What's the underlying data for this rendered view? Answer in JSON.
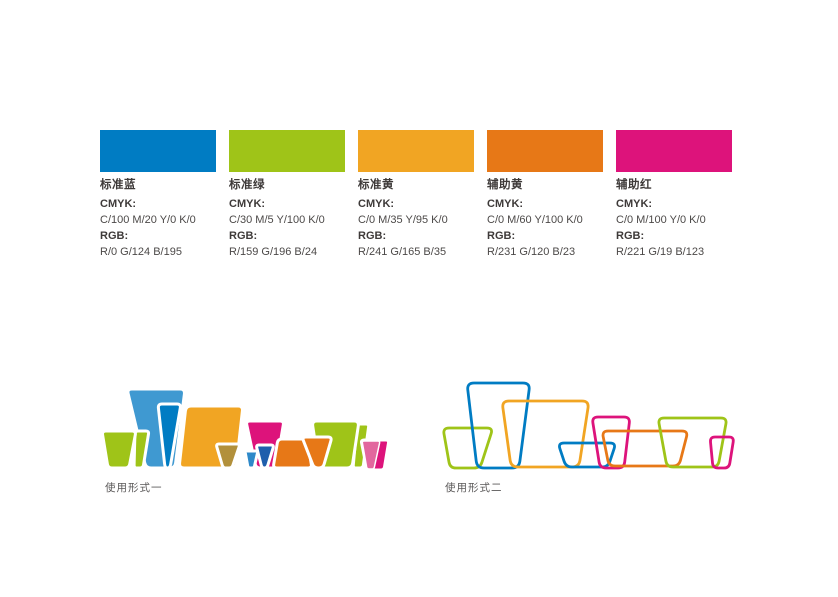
{
  "palette": {
    "cmyk_label": "CMYK:",
    "rgb_label": "RGB:",
    "swatches": [
      {
        "name": "标准蓝",
        "hex": "#007CC3",
        "cmyk": "C/100  M/20  Y/0  K/0",
        "rgb": "R/0  G/124  B/195"
      },
      {
        "name": "标准绿",
        "hex": "#9FC418",
        "cmyk": "C/30  M/5  Y/100  K/0",
        "rgb": "R/159  G/196  B/24"
      },
      {
        "name": "标准黄",
        "hex": "#F1A523",
        "cmyk": "C/0  M/35  Y/95  K/0",
        "rgb": "R/241  G/165  B/35"
      },
      {
        "name": "辅助黄",
        "hex": "#E77817",
        "cmyk": "C/0  M/60  Y/100  K/0",
        "rgb": "R/231  G/120  B/23"
      },
      {
        "name": "辅助红",
        "hex": "#DD137B",
        "cmyk": "C/0  M/100  Y/0  K/0",
        "rgb": "R/221  G/19  B/123"
      }
    ]
  },
  "usage_examples": {
    "form1_label": "使用形式一",
    "form2_label": "使用形式二"
  },
  "logo_shades": {
    "blue_light": "#3F99D1",
    "blue_mid": "#2E89C9",
    "navy": "#1E5EAC",
    "olive": "#B2903B",
    "pink_light": "#E2679E"
  }
}
